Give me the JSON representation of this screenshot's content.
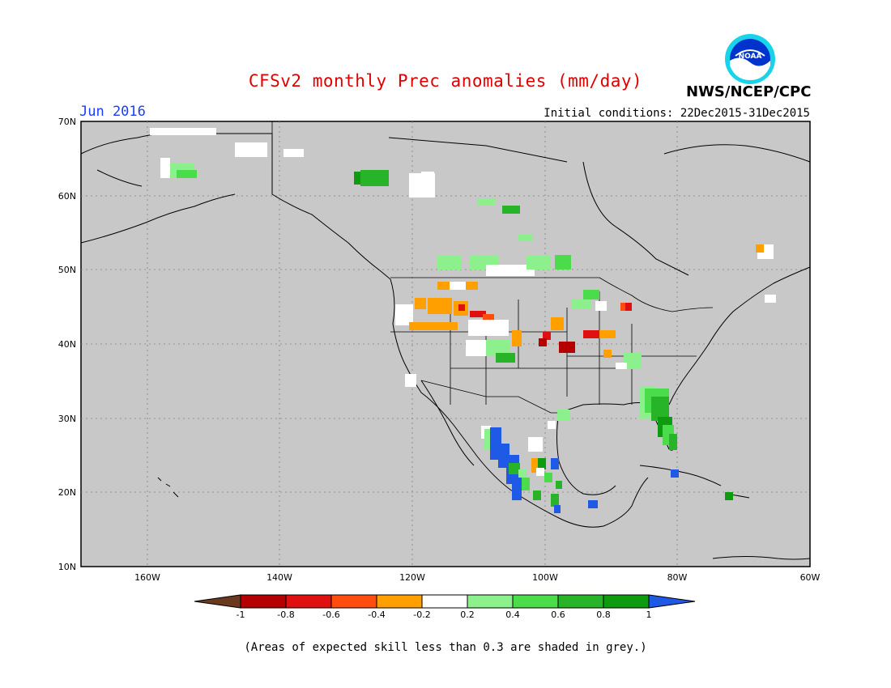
{
  "header": {
    "title": "CFSv2 monthly Prec anomalies (mm/day)",
    "valid_month": "Jun 2016",
    "initial_conditions": "Initial conditions: 22Dec2015-31Dec2015",
    "agency": "NWS/NCEP/CPC",
    "logo_text": "NOAA"
  },
  "map": {
    "lat_labels": [
      "70N",
      "60N",
      "50N",
      "40N",
      "30N",
      "20N",
      "10N"
    ],
    "lon_labels": [
      "160W",
      "140W",
      "120W",
      "100W",
      "80W",
      "60W"
    ],
    "background_color": "#c8c8c8",
    "grid": "dotted"
  },
  "colorbar": {
    "ticks": [
      "-1",
      "-0.8",
      "-0.6",
      "-0.4",
      "-0.2",
      "0.2",
      "0.4",
      "0.6",
      "0.8",
      "1"
    ],
    "colors": [
      "#6b3a1e",
      "#b40000",
      "#e01010",
      "#ff4d10",
      "#ff9f00",
      "#ffffff",
      "#8cf08c",
      "#4bdc4b",
      "#28b428",
      "#0f9b0f",
      "#1e5ae6"
    ]
  },
  "footnote": "(Areas of expected skill less than 0.3 are shaded in grey.)"
}
